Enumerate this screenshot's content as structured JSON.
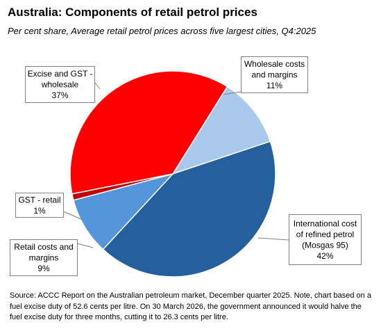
{
  "title": "Australia: Components of retail petrol prices",
  "subtitle": "Per cent share, Average retail petrol prices across five largest cities, Q4:2025",
  "source": "Source: ACCC Report on the Australian petroleum market, December quarter 2025. Note, chart based on a fuel excise duty of 52.6 cents per litre. On 30 March 2026, the government announced it would halve the fuel excise duty for three months, cutting it to 26.3 cents per litre.",
  "chart_data": {
    "type": "pie",
    "title": "Australia: Components of retail petrol prices",
    "subtitle": "Per cent share, Average retail petrol prices across five largest cities, Q4:2025",
    "start_clockwise_from_top": true,
    "slices": [
      {
        "lines": [
          "Wholesale costs",
          "and margins",
          "11%"
        ],
        "value": 11,
        "color": "#a9c8ec"
      },
      {
        "lines": [
          "International cost",
          "of refined petrol",
          "(Mosgas 95)",
          "42%"
        ],
        "value": 42,
        "color": "#245f9e"
      },
      {
        "lines": [
          "Retail costs and",
          "margins",
          "9%"
        ],
        "value": 9,
        "color": "#5595dc"
      },
      {
        "lines": [
          "GST - retail",
          "1%"
        ],
        "value": 1,
        "color": "#c00000"
      },
      {
        "lines": [
          "Excise and GST -",
          "wholesale",
          "37%"
        ],
        "value": 37,
        "color": "#ff0000"
      }
    ]
  }
}
